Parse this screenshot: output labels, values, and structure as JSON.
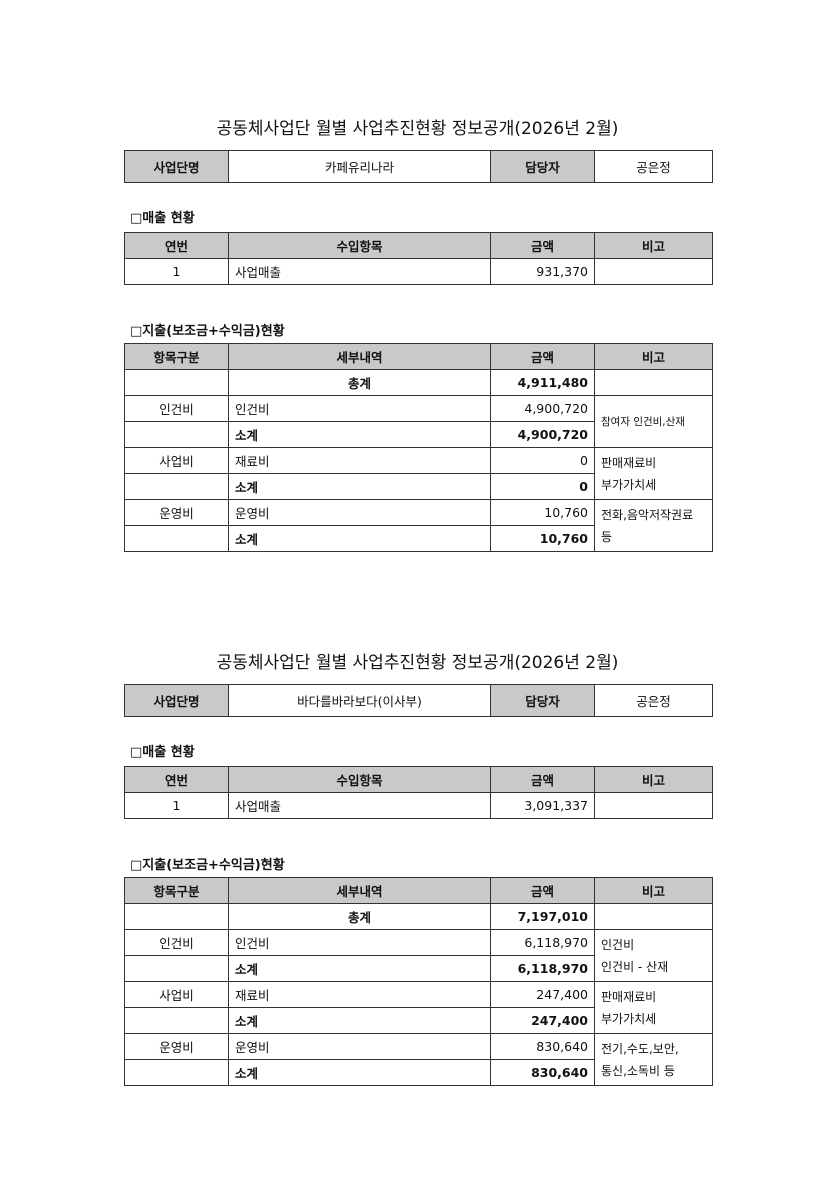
{
  "sections": [
    {
      "title": "공동체사업단 월별 사업추진현황 정보공개(2026년 2월)",
      "info": {
        "name_label": "사업단명",
        "name": "카페유리나라",
        "manager_label": "담당자",
        "manager": "공은정"
      },
      "sales_label": "□매출 현황",
      "sales_headers": [
        "연번",
        "수입항목",
        "금액",
        "비고"
      ],
      "sales_rows": [
        {
          "no": "1",
          "item": "사업매출",
          "amount": "931,370",
          "note": ""
        }
      ],
      "expense_label": "□지출(보조금+수익금)현황",
      "expense_headers": [
        "항목구분",
        "세부내역",
        "금액",
        "비고"
      ],
      "total": {
        "label": "총계",
        "amount": "4,911,480"
      },
      "groups": [
        {
          "category": "인건비",
          "detail": "인건비",
          "amount": "4,900,720",
          "subtotal_label": "소계",
          "subtotal": "4,900,720",
          "note_lines": [
            "참여자 인건비,산재"
          ]
        },
        {
          "category": "사업비",
          "detail": "재료비",
          "amount": "0",
          "subtotal_label": "소계",
          "subtotal": "0",
          "note_lines": [
            "판매재료비",
            "부가가치세"
          ]
        },
        {
          "category": "운영비",
          "detail": "운영비",
          "amount": "10,760",
          "subtotal_label": "소계",
          "subtotal": "10,760",
          "note_lines": [
            "전화,음악저작권료",
            "등"
          ]
        }
      ]
    },
    {
      "title": "공동체사업단 월별 사업추진현황 정보공개(2026년 2월)",
      "info": {
        "name_label": "사업단명",
        "name": "바다를바라보다(이사부)",
        "manager_label": "담당자",
        "manager": "공은정"
      },
      "sales_label": "□매출 현황",
      "sales_headers": [
        "연번",
        "수입항목",
        "금액",
        "비고"
      ],
      "sales_rows": [
        {
          "no": "1",
          "item": "사업매출",
          "amount": "3,091,337",
          "note": ""
        }
      ],
      "expense_label": "□지출(보조금+수익금)현황",
      "expense_headers": [
        "항목구분",
        "세부내역",
        "금액",
        "비고"
      ],
      "total": {
        "label": "총계",
        "amount": "7,197,010"
      },
      "groups": [
        {
          "category": "인건비",
          "detail": "인건비",
          "amount": "6,118,970",
          "subtotal_label": "소계",
          "subtotal": "6,118,970",
          "note_lines": [
            "인건비",
            "인건비 - 산재"
          ]
        },
        {
          "category": "사업비",
          "detail": "재료비",
          "amount": "247,400",
          "subtotal_label": "소계",
          "subtotal": "247,400",
          "note_lines": [
            "판매재료비",
            "부가가치세"
          ]
        },
        {
          "category": "운영비",
          "detail": "운영비",
          "amount": "830,640",
          "subtotal_label": "소계",
          "subtotal": "830,640",
          "note_lines": [
            "전기,수도,보안,",
            "통신,소독비 등"
          ]
        }
      ]
    }
  ]
}
